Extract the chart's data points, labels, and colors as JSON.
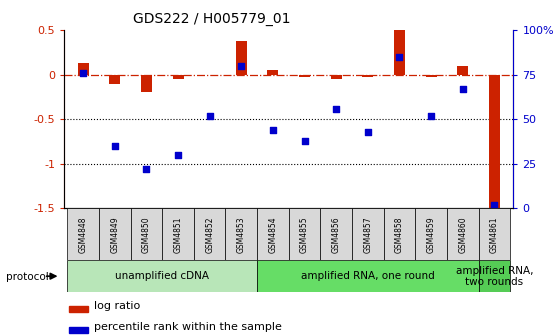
{
  "title": "GDS222 / H005779_01",
  "samples": [
    "GSM4848",
    "GSM4849",
    "GSM4850",
    "GSM4851",
    "GSM4852",
    "GSM4853",
    "GSM4854",
    "GSM4855",
    "GSM4856",
    "GSM4857",
    "GSM4858",
    "GSM4859",
    "GSM4860",
    "GSM4861"
  ],
  "log_ratio": [
    0.13,
    -0.1,
    -0.19,
    -0.05,
    0.0,
    0.38,
    0.05,
    -0.03,
    -0.05,
    -0.02,
    0.5,
    -0.02,
    0.1,
    -1.5
  ],
  "percentile": [
    76,
    35,
    22,
    30,
    52,
    80,
    44,
    38,
    56,
    43,
    85,
    52,
    67,
    2
  ],
  "ylim_left": [
    -1.5,
    0.5
  ],
  "ylim_right": [
    0,
    100
  ],
  "yticks_left": [
    -1.5,
    -1.0,
    -0.5,
    0.0,
    0.5
  ],
  "yticks_right": [
    0,
    25,
    50,
    75,
    100
  ],
  "ytick_labels_left": [
    "-1.5",
    "-1",
    "-0.5",
    "0",
    "0.5"
  ],
  "ytick_labels_right": [
    "0",
    "25",
    "50",
    "75",
    "100%"
  ],
  "hlines": [
    -0.5,
    -1.0
  ],
  "bar_color": "#cc2200",
  "dot_color": "#0000cc",
  "bg_color": "#ffffff",
  "plot_bg": "#ffffff",
  "group_configs": [
    [
      0,
      5,
      "#b8e6b8",
      "unamplified cDNA"
    ],
    [
      6,
      12,
      "#66dd66",
      "amplified RNA, one round"
    ],
    [
      13,
      13,
      "#55cc55",
      "amplified RNA,\ntwo rounds"
    ]
  ],
  "bar_width": 0.35,
  "dot_size": 22,
  "label_cell_color": "#d8d8d8",
  "label_fontsize": 5.5,
  "proto_fontsize": 7.5,
  "title_fontsize": 10
}
